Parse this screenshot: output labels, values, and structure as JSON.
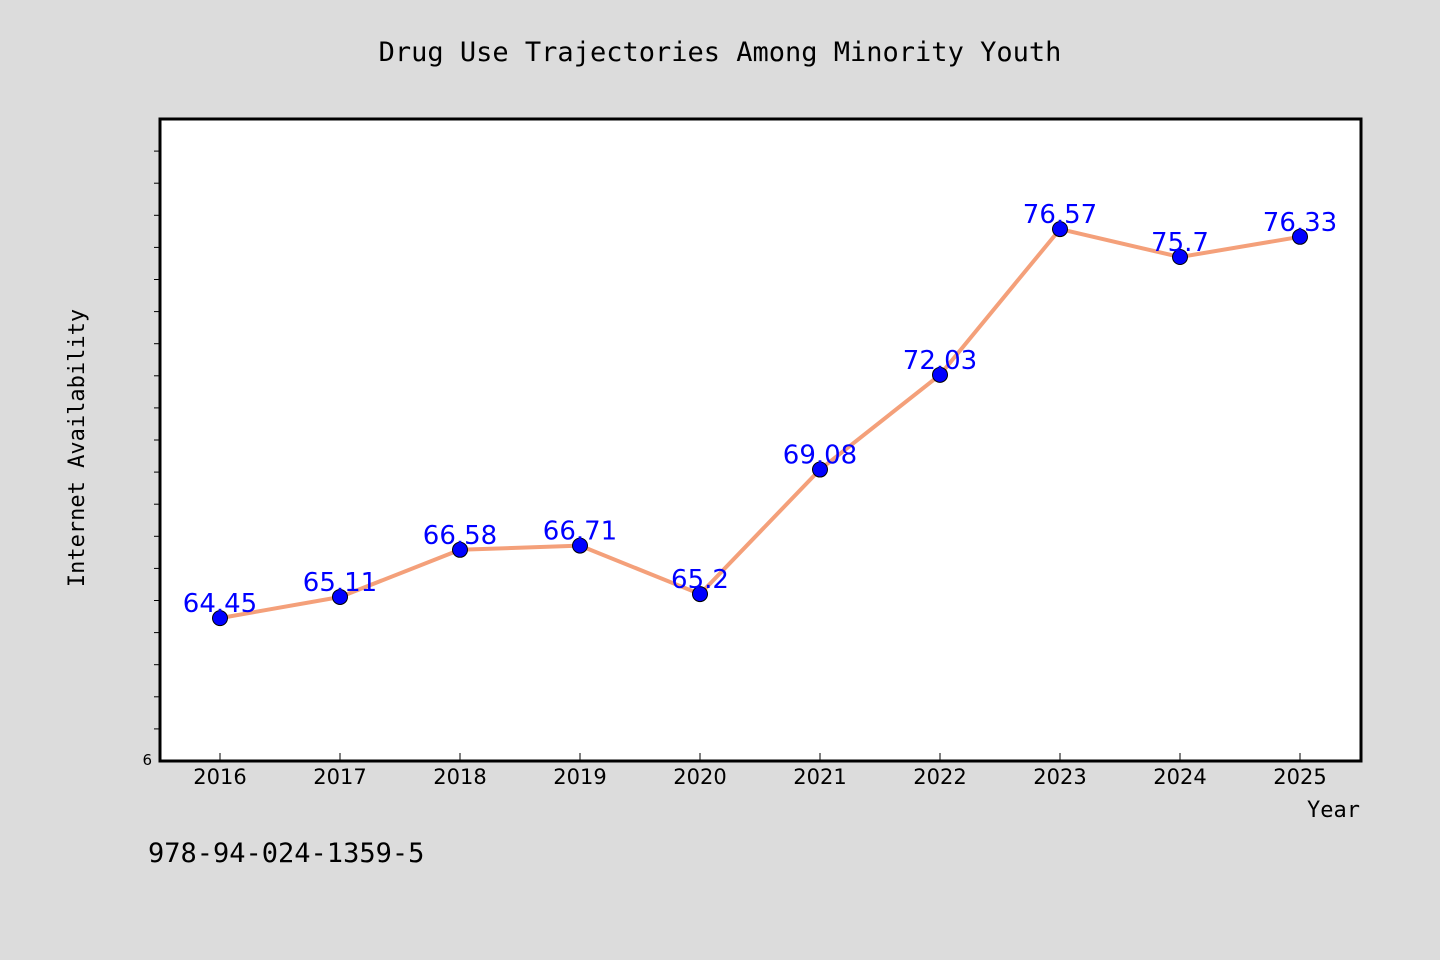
{
  "chart_data": {
    "type": "line",
    "title": "Drug Use Trajectories Among Minority Youth",
    "xlabel": "Year",
    "ylabel": "Internet Availability",
    "categories": [
      "2016",
      "2017",
      "2018",
      "2019",
      "2020",
      "2021",
      "2022",
      "2023",
      "2024",
      "2025"
    ],
    "series": [
      {
        "values": [
          64.45,
          65.11,
          66.58,
          66.71,
          65.2,
          69.08,
          72.03,
          76.57,
          75.7,
          76.33
        ],
        "data_labels": [
          "64.45",
          "65.11",
          "66.58",
          "66.71",
          "65.2",
          "69.08",
          "72.03",
          "76.57",
          "75.7",
          "76.33"
        ],
        "line_color": "#f4a07a",
        "marker_color": "#0000ff"
      }
    ],
    "ylim": [
      60,
      80
    ],
    "ytick_labels_shown": [
      "6"
    ],
    "grid": false,
    "legend": "none",
    "plot_background": "#ffffff",
    "figure_background": "#dcdcdc"
  },
  "footnote": "978-94-024-1359-5"
}
